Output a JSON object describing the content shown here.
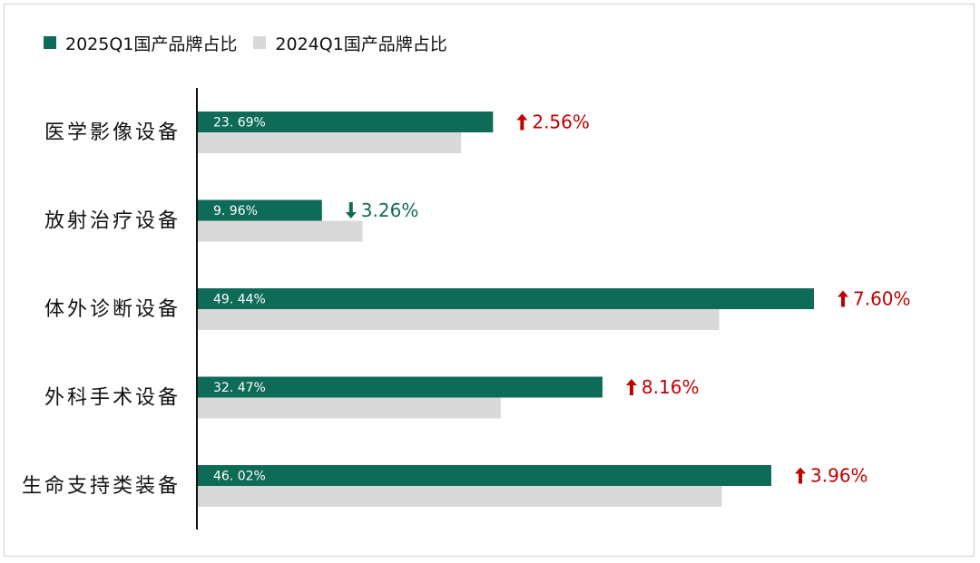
{
  "chart_data": {
    "type": "bar",
    "orientation": "horizontal",
    "categories": [
      "医学影像设备",
      "放射治疗设备",
      "体外诊断设备",
      "外科手术设备",
      "生命支持类装备"
    ],
    "series": [
      {
        "name": "2025Q1国产品牌占比",
        "color": "#0e6b57",
        "values": [
          23.69,
          9.96,
          49.44,
          32.47,
          46.02
        ]
      },
      {
        "name": "2024Q1国产品牌占比",
        "color": "#d9d9d9",
        "values": [
          21.13,
          13.22,
          41.84,
          24.31,
          42.06
        ]
      }
    ],
    "data_labels": [
      "23. 69%",
      "9. 96%",
      "49. 44%",
      "32. 47%",
      "46. 02%"
    ],
    "changes": [
      {
        "direction": "up",
        "text": "2.56%",
        "color": "#c00000"
      },
      {
        "direction": "down",
        "text": "3.26%",
        "color": "#0e6b57"
      },
      {
        "direction": "up",
        "text": "7.60%",
        "color": "#c00000"
      },
      {
        "direction": "up",
        "text": "8.16%",
        "color": "#c00000"
      },
      {
        "direction": "up",
        "text": "3.96%",
        "color": "#c00000"
      }
    ],
    "xlim": [
      0,
      53
    ],
    "grid": false,
    "legend_position": "top-left"
  }
}
